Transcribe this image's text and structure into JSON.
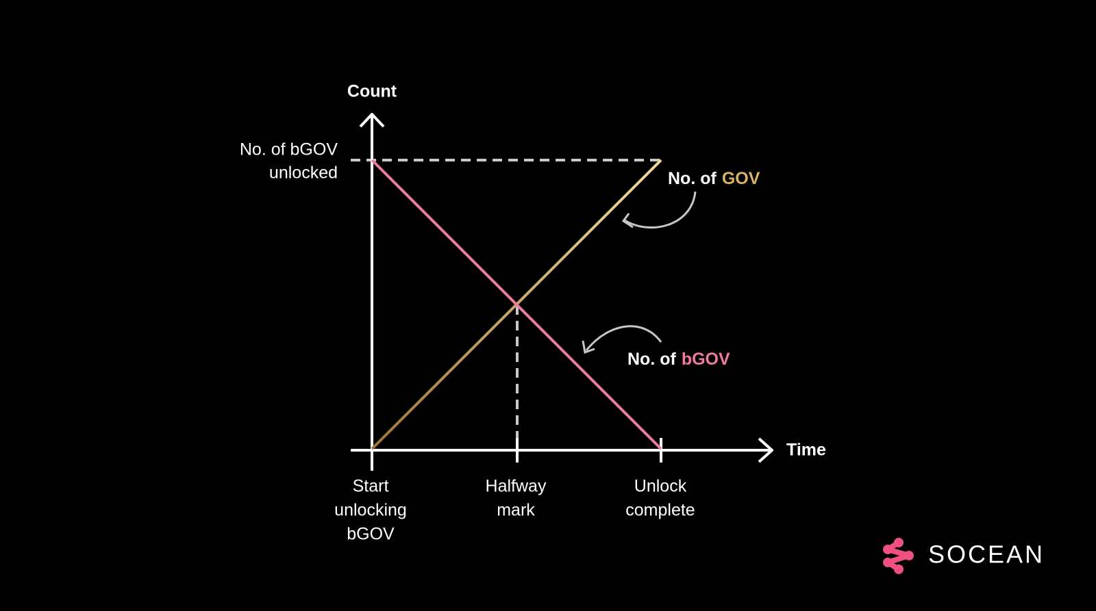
{
  "axes": {
    "y_label": "Count",
    "x_label": "Time"
  },
  "y_marker": {
    "lines": [
      "No. of bGOV",
      "unlocked"
    ]
  },
  "x_markers": [
    {
      "lines": [
        "Start",
        "unlocking",
        "bGOV"
      ]
    },
    {
      "lines": [
        "Halfway",
        "mark"
      ]
    },
    {
      "lines": [
        "Unlock",
        "complete"
      ]
    }
  ],
  "annotations": [
    {
      "prefix": "No. of",
      "token": "GOV"
    },
    {
      "prefix": "No. of",
      "token": "bGOV"
    }
  ],
  "logo": {
    "text": "SOCEAN"
  }
}
